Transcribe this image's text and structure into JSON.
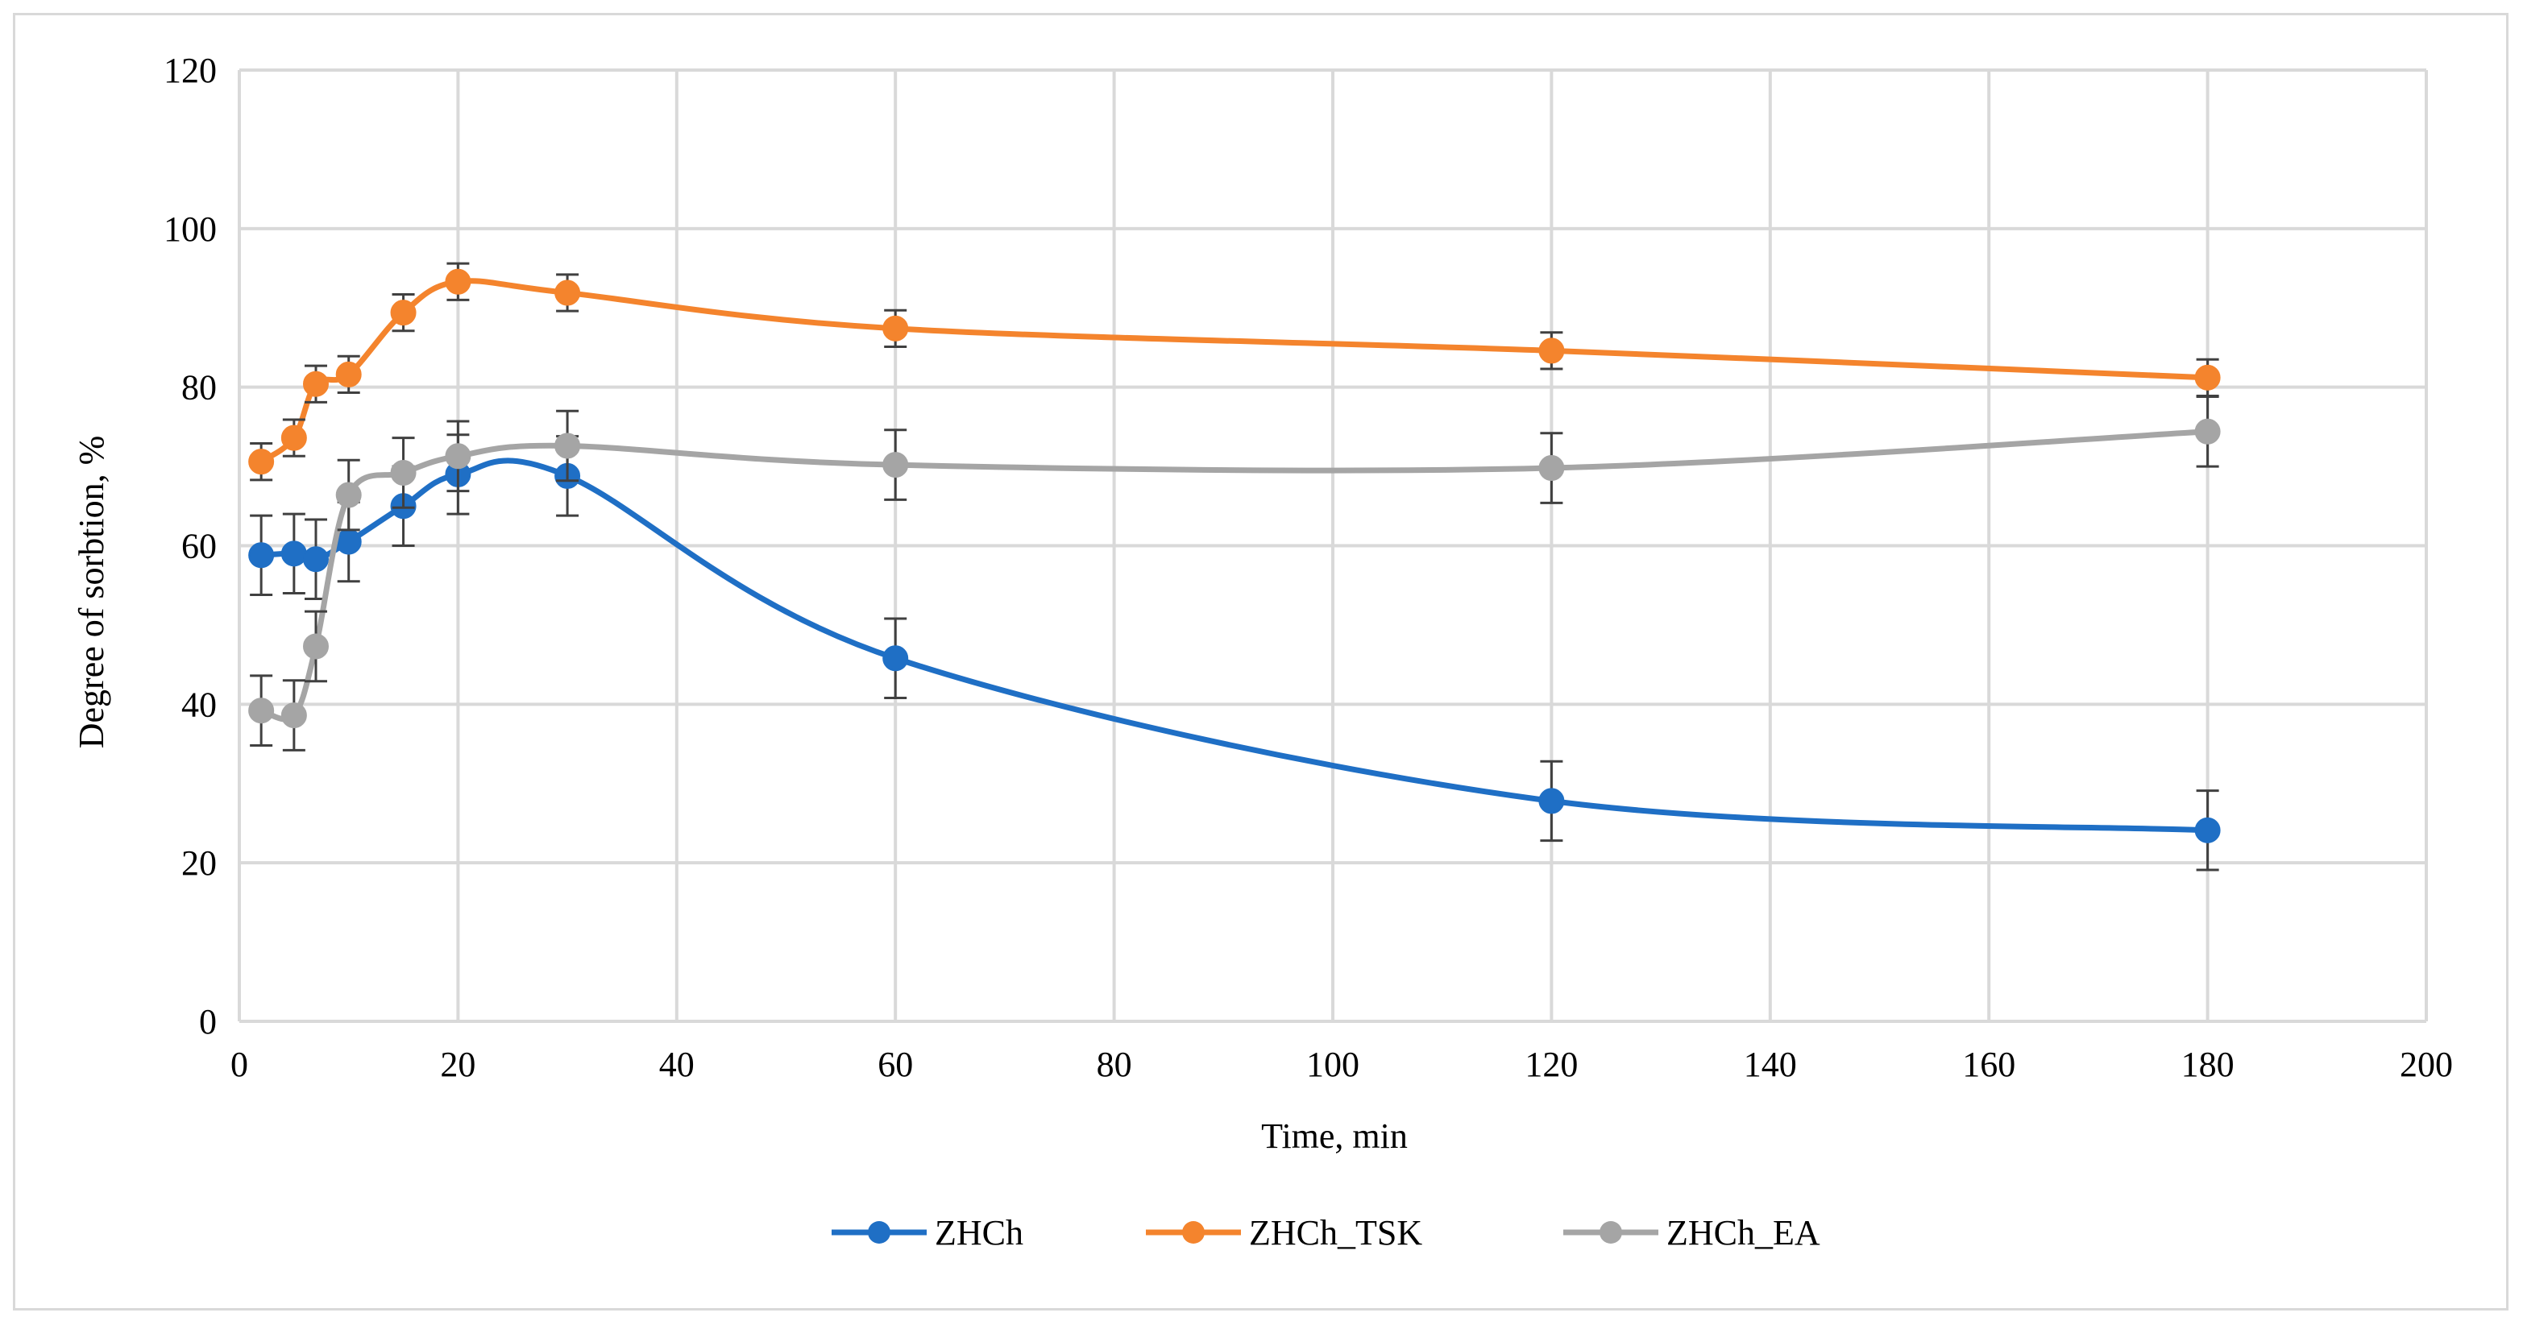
{
  "chart_data": {
    "type": "line",
    "title": "",
    "xlabel": "Time, min",
    "ylabel": "Degree of sorbtion, %",
    "xlim": [
      0,
      200
    ],
    "ylim": [
      0,
      120
    ],
    "xticks": [
      0,
      20,
      40,
      60,
      80,
      100,
      120,
      140,
      160,
      180,
      200
    ],
    "yticks": [
      0,
      20,
      40,
      60,
      80,
      100,
      120
    ],
    "grid": true,
    "smooth": true,
    "legend_position": "bottom",
    "series": [
      {
        "name": "ZHCh",
        "color": "#1f6fc5",
        "x": [
          2,
          5,
          7,
          10,
          15,
          20,
          30,
          60,
          120,
          180
        ],
        "y": [
          58.8,
          59.0,
          58.3,
          60.5,
          65.0,
          69.0,
          68.8,
          45.8,
          27.8,
          24.1
        ],
        "err": [
          5,
          5,
          5,
          5,
          5,
          5,
          5,
          5,
          5,
          5
        ]
      },
      {
        "name": "ZHCh_TSK",
        "color": "#f4842d",
        "x": [
          2,
          5,
          7,
          10,
          15,
          20,
          30,
          60,
          120,
          180
        ],
        "y": [
          70.6,
          73.6,
          80.4,
          81.6,
          89.4,
          93.3,
          91.9,
          87.4,
          84.6,
          81.2
        ],
        "err": [
          2.3,
          2.3,
          2.3,
          2.3,
          2.3,
          2.3,
          2.3,
          2.3,
          2.3,
          2.3
        ]
      },
      {
        "name": "ZHCh_EA",
        "color": "#a5a5a5",
        "x": [
          2,
          5,
          7,
          10,
          15,
          20,
          30,
          60,
          120,
          180
        ],
        "y": [
          39.2,
          38.6,
          47.3,
          66.4,
          69.2,
          71.3,
          72.6,
          70.2,
          69.8,
          74.4
        ],
        "err": [
          4.4,
          4.4,
          4.4,
          4.4,
          4.4,
          4.4,
          4.4,
          4.4,
          4.4,
          4.4
        ]
      }
    ]
  }
}
